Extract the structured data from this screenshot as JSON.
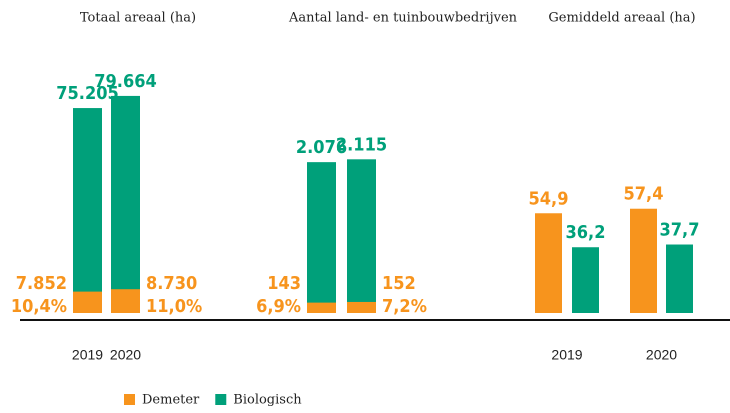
{
  "chart_data": [
    {
      "type": "bar",
      "title": "Totaal areaal (ha)",
      "layout": "overlay",
      "categories": [
        "2019",
        "2020"
      ],
      "ylim": [
        0,
        80000
      ],
      "series": [
        {
          "name": "Demeter",
          "color": "#f7941d",
          "values": [
            7852,
            8730
          ],
          "value_labels": [
            "7.852",
            "8.730"
          ],
          "shares": [
            10.4,
            11.0
          ],
          "share_labels": [
            "10,4%",
            "11,0%"
          ]
        },
        {
          "name": "Biologisch",
          "color": "#00a07a",
          "values": [
            75205,
            79664
          ],
          "value_labels": [
            "75.205",
            "79.664"
          ]
        }
      ]
    },
    {
      "type": "bar",
      "title": "Aantal land- en tuinbouwbedrijven",
      "layout": "overlay",
      "ylim": [
        0,
        3000
      ],
      "series": [
        {
          "color": "#f7941d",
          "values": [
            143,
            152
          ],
          "shares": [
            6.9,
            7.2
          ],
          "share_labels": [
            "6,9%",
            "7,2%"
          ]
        },
        {
          "color": "#00a07a",
          "values": [
            2076,
            2115
          ],
          "value_labels": [
            "2.076",
            "2.115"
          ]
        }
      ]
    },
    {
      "type": "bar",
      "title": "Gemiddeld areaal (ha)",
      "layout": "grouped",
      "categories": [
        "2019",
        "2020"
      ],
      "ylim": [
        0,
        120
      ],
      "series": [
        {
          "color": "#f7941d",
          "values": [
            54.9,
            57.4
          ],
          "value_labels": [
            "54,9",
            "57,4"
          ]
        },
        {
          "color": "#00a07a",
          "values": [
            36.2,
            37.7
          ],
          "value_labels": [
            "36,2",
            "37,7"
          ]
        }
      ]
    }
  ]
}
